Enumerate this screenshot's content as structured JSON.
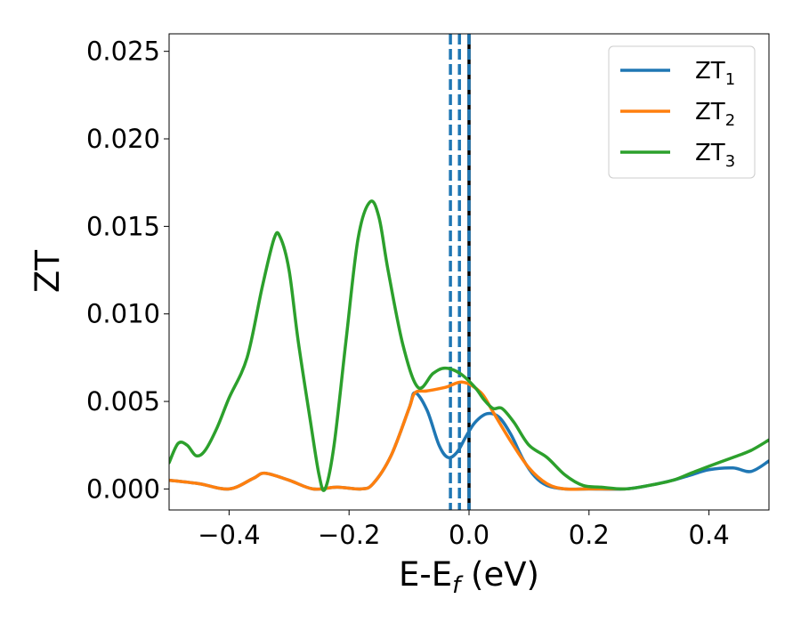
{
  "chart_data": {
    "type": "line",
    "xlabel": "E-E",
    "xlabel_sub": "f",
    "xlabel_unit": " (eV)",
    "ylabel": "ZT",
    "xlim": [
      -0.5,
      0.5
    ],
    "ylim": [
      -0.0012,
      0.026
    ],
    "xticks": [
      -0.4,
      -0.2,
      0.0,
      0.2,
      0.4
    ],
    "xtick_labels": [
      "−0.4",
      "−0.2",
      "0.0",
      "0.2",
      "0.4"
    ],
    "yticks": [
      0.0,
      0.005,
      0.01,
      0.015,
      0.02,
      0.025
    ],
    "ytick_labels": [
      "0.000",
      "0.005",
      "0.010",
      "0.015",
      "0.020",
      "0.025"
    ],
    "legend_position": "top-right",
    "vlines": [
      {
        "x": -0.031,
        "style": "dashed",
        "color": "#1f77b4"
      },
      {
        "x": -0.016,
        "style": "dashed",
        "color": "#1f77b4"
      },
      {
        "x": 0.0,
        "style": "solid",
        "color": "#000000"
      },
      {
        "x": 0.0,
        "style": "dashed",
        "color": "#1f77b4"
      }
    ],
    "series": [
      {
        "name": "ZT",
        "sub": "1",
        "color": "#1f77b4",
        "points": [
          [
            -0.5,
            0.0005
          ],
          [
            -0.45,
            0.0003
          ],
          [
            -0.4,
            0.0
          ],
          [
            -0.36,
            0.0006
          ],
          [
            -0.34,
            0.0009
          ],
          [
            -0.3,
            0.0005
          ],
          [
            -0.26,
            0.0
          ],
          [
            -0.22,
            0.0001
          ],
          [
            -0.18,
            0.0
          ],
          [
            -0.16,
            0.0003
          ],
          [
            -0.13,
            0.0019
          ],
          [
            -0.1,
            0.0046
          ],
          [
            -0.09,
            0.0055
          ],
          [
            -0.07,
            0.0045
          ],
          [
            -0.05,
            0.0025
          ],
          [
            -0.035,
            0.0018
          ],
          [
            -0.02,
            0.0021
          ],
          [
            -0.005,
            0.003
          ],
          [
            0.01,
            0.0038
          ],
          [
            0.03,
            0.0043
          ],
          [
            0.05,
            0.0041
          ],
          [
            0.07,
            0.0031
          ],
          [
            0.09,
            0.0017
          ],
          [
            0.11,
            0.0007
          ],
          [
            0.13,
            0.0002
          ],
          [
            0.16,
            0.0
          ],
          [
            0.2,
            0.0
          ],
          [
            0.26,
            0.0
          ],
          [
            0.3,
            0.0002
          ],
          [
            0.34,
            0.0005
          ],
          [
            0.37,
            0.0008
          ],
          [
            0.4,
            0.0011
          ],
          [
            0.44,
            0.0012
          ],
          [
            0.47,
            0.001
          ],
          [
            0.5,
            0.0016
          ]
        ]
      },
      {
        "name": "ZT",
        "sub": "2",
        "color": "#ff7f0e",
        "points": [
          [
            -0.5,
            0.0005
          ],
          [
            -0.45,
            0.0003
          ],
          [
            -0.4,
            0.0
          ],
          [
            -0.36,
            0.0006
          ],
          [
            -0.34,
            0.0009
          ],
          [
            -0.3,
            0.0005
          ],
          [
            -0.26,
            0.0
          ],
          [
            -0.22,
            0.0001
          ],
          [
            -0.18,
            0.0
          ],
          [
            -0.16,
            0.0003
          ],
          [
            -0.13,
            0.0019
          ],
          [
            -0.1,
            0.0046
          ],
          [
            -0.09,
            0.0055
          ],
          [
            -0.07,
            0.0056
          ],
          [
            -0.04,
            0.0058
          ],
          [
            -0.01,
            0.0061
          ],
          [
            0.02,
            0.0055
          ],
          [
            0.04,
            0.0044
          ],
          [
            0.07,
            0.0027
          ],
          [
            0.1,
            0.0012
          ],
          [
            0.13,
            0.0003
          ],
          [
            0.16,
            0.0
          ],
          [
            0.2,
            0.0
          ],
          [
            0.26,
            0.0
          ]
        ]
      },
      {
        "name": "ZT",
        "sub": "3",
        "color": "#2ca02c",
        "points": [
          [
            -0.5,
            0.0015
          ],
          [
            -0.485,
            0.0026
          ],
          [
            -0.47,
            0.0025
          ],
          [
            -0.455,
            0.0019
          ],
          [
            -0.44,
            0.0022
          ],
          [
            -0.42,
            0.0035
          ],
          [
            -0.4,
            0.0052
          ],
          [
            -0.37,
            0.0075
          ],
          [
            -0.345,
            0.0115
          ],
          [
            -0.325,
            0.0143
          ],
          [
            -0.315,
            0.0144
          ],
          [
            -0.3,
            0.0125
          ],
          [
            -0.285,
            0.0085
          ],
          [
            -0.265,
            0.004
          ],
          [
            -0.25,
            0.0008
          ],
          [
            -0.24,
            0.0
          ],
          [
            -0.225,
            0.0025
          ],
          [
            -0.205,
            0.0085
          ],
          [
            -0.185,
            0.0143
          ],
          [
            -0.165,
            0.0164
          ],
          [
            -0.15,
            0.0155
          ],
          [
            -0.135,
            0.0125
          ],
          [
            -0.11,
            0.0082
          ],
          [
            -0.085,
            0.0058
          ],
          [
            -0.06,
            0.0066
          ],
          [
            -0.04,
            0.0069
          ],
          [
            -0.015,
            0.0066
          ],
          [
            0.01,
            0.0058
          ],
          [
            0.025,
            0.0051
          ],
          [
            0.04,
            0.0046
          ],
          [
            0.055,
            0.0046
          ],
          [
            0.075,
            0.0038
          ],
          [
            0.1,
            0.0025
          ],
          [
            0.13,
            0.0018
          ],
          [
            0.16,
            0.0008
          ],
          [
            0.19,
            0.0002
          ],
          [
            0.22,
            0.0001
          ],
          [
            0.26,
            0.0
          ],
          [
            0.3,
            0.0002
          ],
          [
            0.34,
            0.0005
          ],
          [
            0.37,
            0.0009
          ],
          [
            0.4,
            0.0013
          ],
          [
            0.44,
            0.0018
          ],
          [
            0.47,
            0.0022
          ],
          [
            0.5,
            0.0028
          ]
        ]
      }
    ]
  }
}
